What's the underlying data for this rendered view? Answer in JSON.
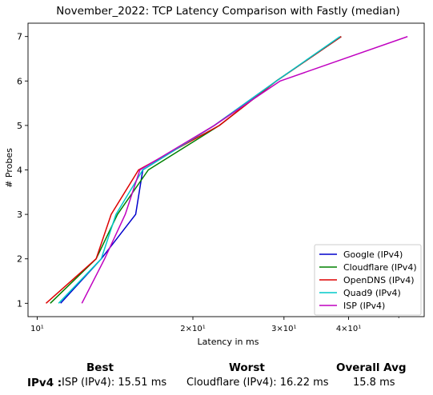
{
  "chart_data": {
    "type": "line",
    "title": "November_2022: TCP Latency Comparison with Fastly (median)",
    "xlabel": "Latency in ms",
    "ylabel": "# Probes",
    "xscale": "log",
    "xlim": [
      9.6,
      56
    ],
    "ylim": [
      0.7,
      7.3
    ],
    "x_ticks": [
      {
        "value": 10,
        "label": "10¹"
      },
      {
        "value": 20,
        "label": "2×10¹"
      },
      {
        "value": 30,
        "label": "3×10¹"
      },
      {
        "value": 40,
        "label": "4×10¹"
      }
    ],
    "y_ticks": [
      1,
      2,
      3,
      4,
      5,
      6,
      7
    ],
    "legend_position": "lower-right",
    "grid": false,
    "series": [
      {
        "name": "Google (IPv4)",
        "color": "#0000cc",
        "points": [
          [
            11.1,
            1
          ],
          [
            13.3,
            2
          ],
          [
            15.5,
            3
          ],
          [
            16.0,
            4
          ],
          [
            22.0,
            5
          ],
          [
            29.0,
            6
          ],
          [
            38.7,
            7
          ]
        ]
      },
      {
        "name": "Cloudflare (IPv4)",
        "color": "#008000",
        "points": [
          [
            10.6,
            1
          ],
          [
            13.0,
            2
          ],
          [
            14.3,
            3
          ],
          [
            16.4,
            4
          ],
          [
            22.5,
            5
          ],
          [
            29.0,
            6
          ],
          [
            38.7,
            7
          ]
        ]
      },
      {
        "name": "OpenDNS (IPv4)",
        "color": "#dd0000",
        "points": [
          [
            10.4,
            1
          ],
          [
            13.0,
            2
          ],
          [
            13.9,
            3
          ],
          [
            15.7,
            4
          ],
          [
            22.5,
            5
          ],
          [
            29.0,
            6
          ],
          [
            38.7,
            7
          ]
        ]
      },
      {
        "name": "Quad9 (IPv4)",
        "color": "#00c8c8",
        "points": [
          [
            11.0,
            1
          ],
          [
            13.3,
            2
          ],
          [
            14.2,
            3
          ],
          [
            16.0,
            4
          ],
          [
            22.0,
            5
          ],
          [
            29.0,
            6
          ],
          [
            38.5,
            7
          ]
        ]
      },
      {
        "name": "ISP (IPv4)",
        "color": "#c000c0",
        "points": [
          [
            12.2,
            1
          ],
          [
            13.5,
            2
          ],
          [
            14.8,
            3
          ],
          [
            15.8,
            4
          ],
          [
            22.0,
            5
          ],
          [
            29.5,
            6
          ],
          [
            52.0,
            7
          ]
        ]
      }
    ]
  },
  "summary": {
    "headers": {
      "best": "Best",
      "worst": "Worst",
      "avg": "Overall Avg"
    },
    "row_label": "IPv4 :",
    "best": "ISP (IPv4): 15.51 ms",
    "worst": "Cloudflare (IPv4): 16.22 ms",
    "avg": "15.8 ms"
  }
}
